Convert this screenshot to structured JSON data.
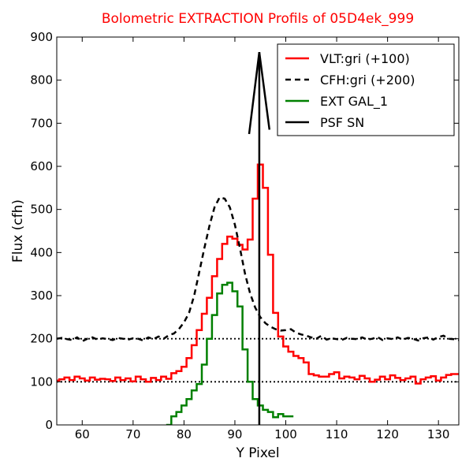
{
  "chart_data": {
    "type": "line",
    "title": "Bolometric EXTRACTION Profils of 05D4ek_999",
    "xlabel": "Y Pixel",
    "ylabel": "Flux (cfh)",
    "xlim": [
      55,
      134
    ],
    "ylim": [
      0,
      900
    ],
    "xticks": [
      60,
      70,
      80,
      90,
      100,
      110,
      120,
      130
    ],
    "yticks": [
      0,
      100,
      200,
      300,
      400,
      500,
      600,
      700,
      800,
      900
    ],
    "legend_position": "top-right",
    "reference_lines": [
      100,
      200
    ],
    "series": [
      {
        "name": "VLT:gri (+100)",
        "color": "#ff0000",
        "style": "steps",
        "x": [
          55,
          56,
          57,
          58,
          59,
          60,
          61,
          62,
          63,
          64,
          65,
          66,
          67,
          68,
          69,
          70,
          71,
          72,
          73,
          74,
          75,
          76,
          77,
          78,
          79,
          80,
          81,
          82,
          83,
          84,
          85,
          86,
          87,
          88,
          89,
          90,
          91,
          92,
          93,
          94,
          95,
          96,
          97,
          98,
          99,
          100,
          101,
          102,
          103,
          104,
          105,
          106,
          107,
          108,
          109,
          110,
          111,
          112,
          113,
          114,
          115,
          116,
          117,
          118,
          119,
          120,
          121,
          122,
          123,
          124,
          125,
          126,
          127,
          128,
          129,
          130,
          131,
          132,
          133,
          134
        ],
        "values": [
          103,
          106,
          110,
          104,
          112,
          108,
          103,
          110,
          105,
          107,
          106,
          102,
          110,
          104,
          108,
          101,
          112,
          106,
          100,
          109,
          104,
          112,
          107,
          120,
          125,
          135,
          155,
          185,
          220,
          258,
          295,
          345,
          385,
          420,
          437,
          432,
          418,
          407,
          430,
          525,
          604,
          550,
          395,
          260,
          205,
          182,
          170,
          160,
          155,
          145,
          118,
          115,
          112,
          112,
          118,
          122,
          108,
          112,
          110,
          106,
          114,
          108,
          100,
          105,
          112,
          106,
          115,
          109,
          104,
          108,
          112,
          96,
          106,
          110,
          113,
          103,
          110,
          116,
          118,
          118
        ]
      },
      {
        "name": "CFH:gri (+200)",
        "color": "#000000",
        "style": "dashed",
        "x": [
          55,
          56,
          57,
          58,
          59,
          60,
          61,
          62,
          63,
          64,
          65,
          66,
          67,
          68,
          69,
          70,
          71,
          72,
          73,
          74,
          75,
          76,
          77,
          78,
          79,
          80,
          81,
          82,
          83,
          84,
          85,
          86,
          87,
          88,
          89,
          90,
          91,
          92,
          93,
          94,
          95,
          96,
          97,
          98,
          99,
          100,
          101,
          102,
          103,
          104,
          105,
          106,
          107,
          108,
          109,
          110,
          111,
          112,
          113,
          114,
          115,
          116,
          117,
          118,
          119,
          120,
          121,
          122,
          123,
          124,
          125,
          126,
          127,
          128,
          129,
          130,
          131,
          132,
          133,
          134
        ],
        "values": [
          200,
          202,
          199,
          197,
          203,
          194,
          200,
          203,
          198,
          201,
          199,
          197,
          202,
          200,
          198,
          201,
          200,
          196,
          203,
          199,
          205,
          200,
          208,
          212,
          222,
          238,
          260,
          300,
          355,
          410,
          462,
          505,
          528,
          525,
          505,
          465,
          410,
          350,
          305,
          272,
          250,
          236,
          228,
          222,
          219,
          220,
          222,
          214,
          210,
          207,
          203,
          200,
          207,
          198,
          201,
          199,
          197,
          202,
          200,
          199,
          203,
          198,
          200,
          204,
          197,
          201,
          199,
          203,
          198,
          202,
          200,
          196,
          201,
          203,
          198,
          204,
          207,
          200,
          199,
          197
        ]
      },
      {
        "name": "EXT GAL_1",
        "color": "#008000",
        "style": "steps",
        "x": [
          77,
          78,
          79,
          80,
          81,
          82,
          83,
          84,
          85,
          86,
          87,
          88,
          89,
          90,
          91,
          92,
          93,
          94,
          95,
          96,
          97,
          98,
          99,
          100,
          101
        ],
        "values": [
          0,
          20,
          30,
          45,
          60,
          80,
          95,
          140,
          200,
          255,
          305,
          325,
          330,
          310,
          275,
          175,
          100,
          60,
          45,
          35,
          30,
          18,
          25,
          20,
          20
        ]
      },
      {
        "name": "PSF SN",
        "color": "#000000",
        "style": "solid",
        "x": [
          94.8,
          94.8
        ],
        "values": [
          0,
          865
        ],
        "arrowhead": {
          "x": [
            92.8,
            94.8,
            96.8
          ],
          "values": [
            675,
            865,
            685
          ]
        }
      }
    ]
  }
}
